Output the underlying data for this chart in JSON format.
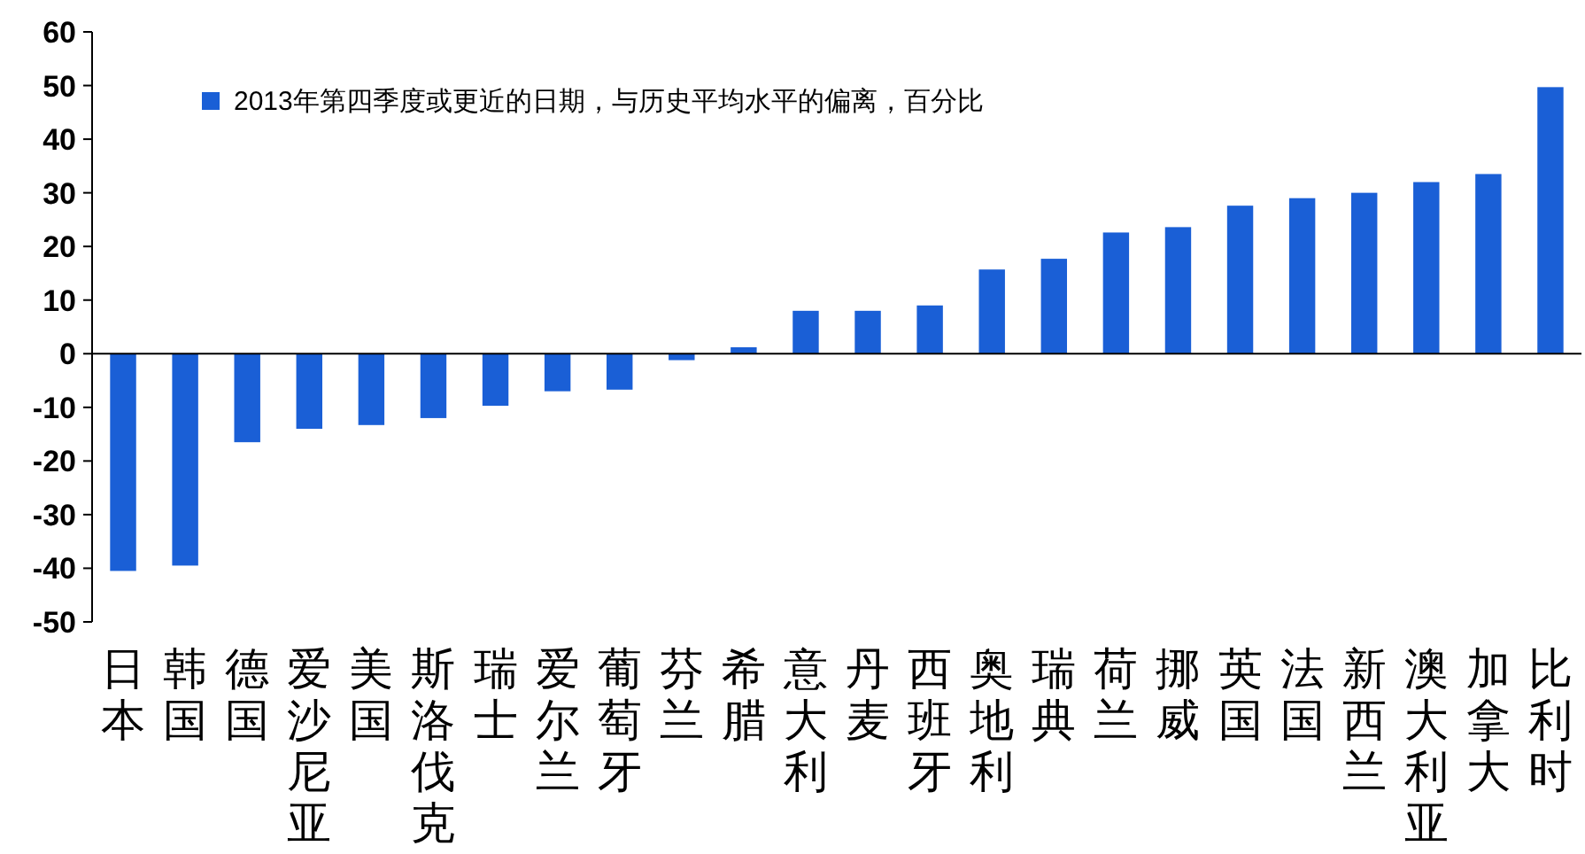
{
  "chart_data": {
    "type": "bar",
    "categories": [
      "日本",
      "韩国",
      "德国",
      "爱沙尼亚",
      "美国",
      "斯洛伐克",
      "瑞士",
      "爱尔兰",
      "葡萄牙",
      "芬兰",
      "希腊",
      "意大利",
      "丹麦",
      "西班牙",
      "奥地利",
      "瑞典",
      "荷兰",
      "挪威",
      "英国",
      "法国",
      "新西兰",
      "澳大利亚",
      "加拿大",
      "比利时"
    ],
    "series": [
      {
        "name": "2013年第四季度或更近的日期，与历史平均水平的偏离，百分比",
        "color": "#1a5fd6",
        "values": [
          -40.5,
          -39.5,
          -16.5,
          -14,
          -13.3,
          -12,
          -9.7,
          -7,
          -6.7,
          -1.2,
          1.2,
          8,
          8,
          9,
          15.7,
          17.7,
          22.6,
          23.6,
          27.6,
          29,
          30,
          32,
          33.5,
          49.7
        ]
      }
    ],
    "ylim": [
      -50,
      60
    ],
    "yticks": [
      -50,
      -40,
      -30,
      -20,
      -10,
      0,
      10,
      20,
      30,
      40,
      50,
      60
    ],
    "legend": "top left"
  }
}
